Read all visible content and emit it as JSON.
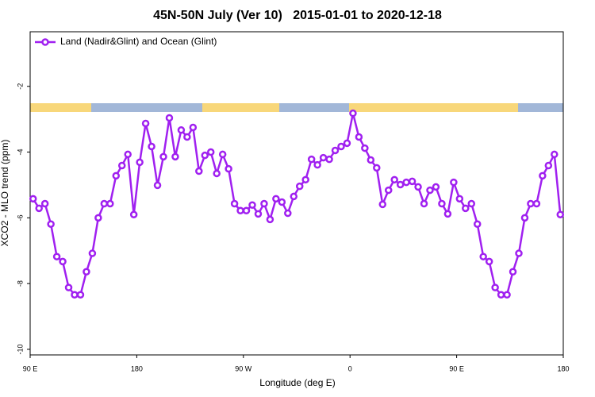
{
  "chart_data": {
    "type": "line",
    "title": "45N-50N July (Ver 10)   2015-01-01 to 2020-12-18",
    "xlabel": "Longitude (deg E)",
    "ylabel": "XCO2 - MLO trend (ppm)",
    "legend": "top-left",
    "grid": false,
    "xlim": [
      90,
      540
    ],
    "xticks": [
      {
        "value": 90,
        "label": "90 E"
      },
      {
        "value": 180,
        "label": "180"
      },
      {
        "value": 270,
        "label": "90 W"
      },
      {
        "value": 360,
        "label": "0"
      },
      {
        "value": 450,
        "label": "90 E"
      },
      {
        "value": 540,
        "label": "180"
      }
    ],
    "ylim": [
      -10.17,
      -0.34
    ],
    "yticks": [
      -2,
      -4,
      -6,
      -8,
      -10
    ],
    "x": [
      92.5,
      97.5,
      102.5,
      107.5,
      112.5,
      117.5,
      122.5,
      127.5,
      132.5,
      137.5,
      142.5,
      147.5,
      152.5,
      157.5,
      162.5,
      167.5,
      172.5,
      177.5,
      182.5,
      187.5,
      192.5,
      197.5,
      202.5,
      207.5,
      212.5,
      217.5,
      222.5,
      227.5,
      232.5,
      237.5,
      242.5,
      247.5,
      252.5,
      257.5,
      262.5,
      267.5,
      272.5,
      277.5,
      282.5,
      287.5,
      292.5,
      297.5,
      302.5,
      307.5,
      312.5,
      317.5,
      322.5,
      327.5,
      332.5,
      337.5,
      342.5,
      347.5,
      352.5,
      357.5,
      362.5,
      367.5,
      372.5,
      377.5,
      382.5,
      387.5,
      392.5,
      397.5,
      402.5,
      407.5,
      412.5,
      417.5,
      422.5,
      427.5,
      432.5,
      437.5,
      442.5,
      447.5,
      452.5,
      457.5,
      462.5,
      467.5,
      472.5,
      477.5,
      482.5,
      487.5,
      492.5,
      497.5,
      502.5,
      507.5,
      512.5,
      517.5,
      522.5,
      527.5,
      532.5,
      537.5
    ],
    "series": [
      {
        "name": "Land (Nadir&Glint) and Ocean (Glint)",
        "color": "#a020f0",
        "values": [
          -5.42,
          -5.71,
          -5.57,
          -6.19,
          -7.18,
          -7.33,
          -8.12,
          -8.34,
          -8.34,
          -7.64,
          -7.08,
          -6.0,
          -5.57,
          -5.57,
          -4.72,
          -4.41,
          -4.07,
          -5.9,
          -4.31,
          -3.13,
          -3.83,
          -5.01,
          -4.14,
          -2.96,
          -4.14,
          -3.33,
          -3.54,
          -3.25,
          -4.58,
          -4.1,
          -4.0,
          -4.65,
          -4.07,
          -4.51,
          -5.57,
          -5.78,
          -5.78,
          -5.61,
          -5.88,
          -5.57,
          -6.05,
          -5.42,
          -5.52,
          -5.86,
          -5.35,
          -5.04,
          -4.84,
          -4.22,
          -4.39,
          -4.17,
          -4.22,
          -3.95,
          -3.83,
          -3.73,
          -2.82,
          -3.54,
          -3.88,
          -4.24,
          -4.48,
          -5.59,
          -5.16,
          -4.84,
          -4.99,
          -4.92,
          -4.89,
          -5.06,
          -5.57,
          -5.16,
          -5.06,
          -5.57,
          -5.88,
          -4.92,
          -5.42,
          -5.71,
          -5.57,
          -6.19,
          -7.18,
          -7.33,
          -8.12,
          -8.34,
          -8.34,
          -7.64,
          -7.08,
          -6.0,
          -5.57,
          -5.57,
          -4.72,
          -4.41,
          -4.07,
          -5.9
        ]
      }
    ]
  }
}
